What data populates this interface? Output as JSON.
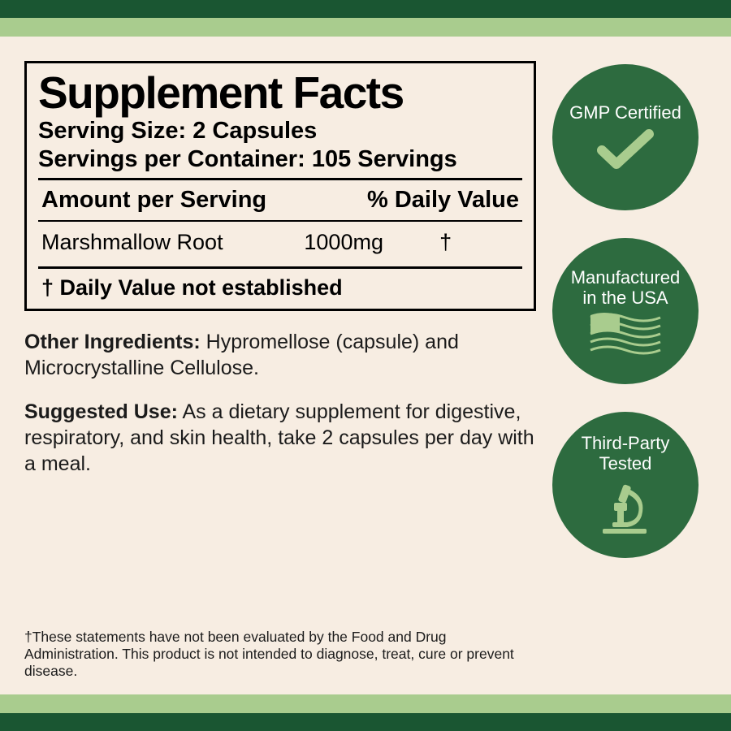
{
  "colors": {
    "dark_bar": "#1a5632",
    "light_bar": "#a9cc8e",
    "panel_bg": "#f7ede2",
    "badge_bg": "#2d6b3f",
    "badge_icon": "#a9cc8e",
    "text": "#1b1b1b"
  },
  "layout": {
    "dark_bar_h": 22,
    "light_bar_h": 23
  },
  "facts": {
    "title": "Supplement Facts",
    "serving_size_label": "Serving Size:",
    "serving_size_value": "2 Capsules",
    "servings_per_label": "Servings per Container:",
    "servings_per_value": "105 Servings",
    "col_amount": "Amount per Serving",
    "col_dv": "% Daily Value",
    "ingredient": "Marshmallow Root",
    "amount": "1000mg",
    "dv_mark": "†",
    "dv_footnote": "† Daily Value not established"
  },
  "other_ing": {
    "lead": "Other Ingredients:",
    "text": " Hypromellose (capsule) and Microcrystalline Cellulose."
  },
  "suggested": {
    "lead": "Suggested Use:",
    "text": " As a dietary supplement for digestive, respiratory, and skin health, take 2 capsules per day with a meal."
  },
  "disclaimer": "†These statements have not been evaluated by the Food and Drug Administration. This product is not intended to diagnose, treat, cure or prevent disease.",
  "badges": {
    "gmp": "GMP Certified",
    "usa_l1": "Manufactured",
    "usa_l2": "in the USA",
    "tested": "Third-Party Tested"
  }
}
